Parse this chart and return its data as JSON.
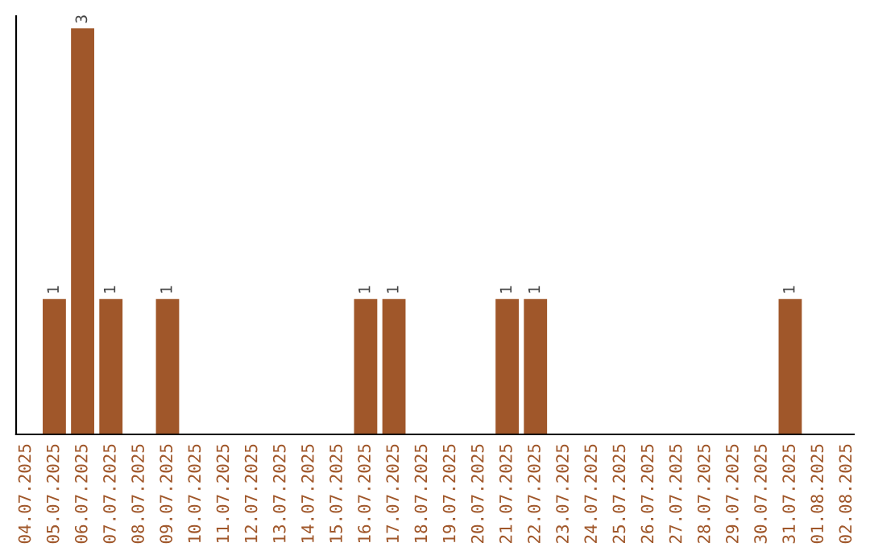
{
  "chart_data": {
    "type": "bar",
    "categories": [
      "04.07.2025",
      "05.07.2025",
      "06.07.2025",
      "07.07.2025",
      "08.07.2025",
      "09.07.2025",
      "10.07.2025",
      "11.07.2025",
      "12.07.2025",
      "13.07.2025",
      "14.07.2025",
      "15.07.2025",
      "16.07.2025",
      "17.07.2025",
      "18.07.2025",
      "19.07.2025",
      "20.07.2025",
      "21.07.2025",
      "22.07.2025",
      "23.07.2025",
      "24.07.2025",
      "25.07.2025",
      "26.07.2025",
      "27.07.2025",
      "28.07.2025",
      "29.07.2025",
      "30.07.2025",
      "31.07.2025",
      "01.08.2025",
      "02.08.2025"
    ],
    "values": [
      0,
      1,
      3,
      1,
      0,
      1,
      0,
      0,
      0,
      0,
      0,
      0,
      1,
      1,
      0,
      0,
      0,
      1,
      1,
      0,
      0,
      0,
      0,
      0,
      0,
      0,
      0,
      1,
      0,
      0
    ],
    "value_labels": [
      null,
      "1",
      "3",
      "1",
      null,
      "1",
      null,
      null,
      null,
      null,
      null,
      null,
      "1",
      "1",
      null,
      null,
      null,
      "1",
      "1",
      null,
      null,
      null,
      null,
      null,
      null,
      null,
      null,
      "1",
      null,
      null
    ],
    "color": "#a0572a",
    "grid": false
  }
}
